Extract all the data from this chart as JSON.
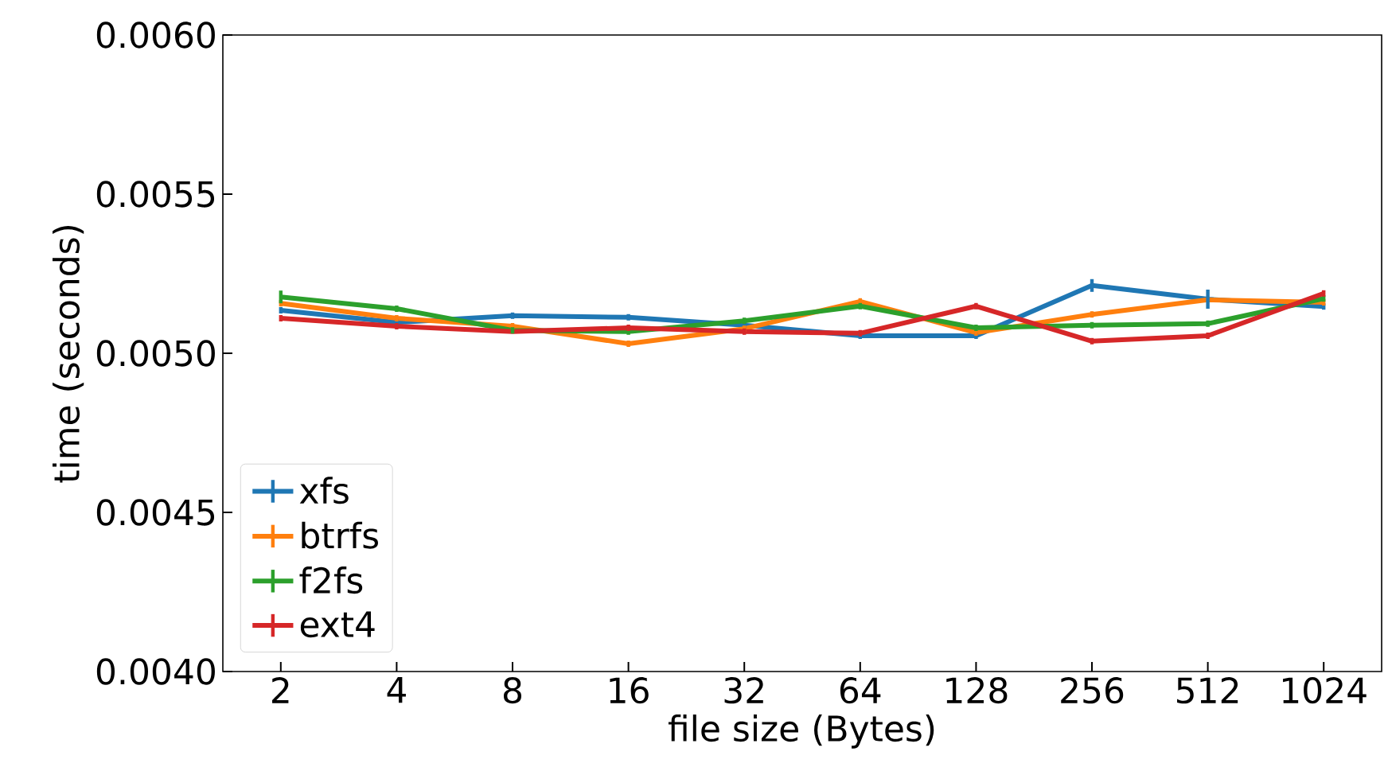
{
  "chart_data": {
    "type": "line",
    "xlabel": "file size (Bytes)",
    "ylabel": "time (seconds)",
    "categories": [
      "2",
      "4",
      "8",
      "16",
      "32",
      "64",
      "128",
      "256",
      "512",
      "1024"
    ],
    "series": [
      {
        "name": "xfs",
        "color": "#1f77b4",
        "values": [
          0.005135,
          0.005097,
          0.005118,
          0.005113,
          0.005088,
          0.005055,
          0.005055,
          0.005213,
          0.00517,
          0.005147
        ],
        "errors": [
          1e-05,
          1e-05,
          1e-05,
          1e-05,
          1e-05,
          1e-05,
          1e-05,
          2e-05,
          3e-05,
          1e-05
        ]
      },
      {
        "name": "btrfs",
        "color": "#ff7f0e",
        "values": [
          0.005157,
          0.00511,
          0.005085,
          0.00503,
          0.005077,
          0.005163,
          0.005065,
          0.005122,
          0.005168,
          0.00516
        ],
        "errors": [
          1e-05,
          1e-05,
          1e-05,
          1e-05,
          1e-05,
          1e-05,
          1e-05,
          1e-05,
          null,
          1e-05
        ]
      },
      {
        "name": "f2fs",
        "color": "#2ca02c",
        "values": [
          0.005177,
          0.00514,
          0.005072,
          0.005068,
          0.005102,
          0.005148,
          0.00508,
          0.005088,
          0.005093,
          0.005172
        ],
        "errors": [
          2e-05,
          1e-05,
          1e-05,
          1e-05,
          1e-05,
          1e-05,
          1e-05,
          1e-05,
          1e-05,
          1e-05
        ]
      },
      {
        "name": "ext4",
        "color": "#d62728",
        "values": [
          0.00511,
          0.005085,
          0.005068,
          0.00508,
          0.005068,
          0.005063,
          0.005148,
          0.005038,
          0.005055,
          0.005188
        ],
        "errors": [
          1e-05,
          1e-05,
          null,
          1e-05,
          1e-05,
          1e-05,
          1e-05,
          1e-05,
          1e-05,
          1e-05
        ]
      }
    ],
    "ylim": [
      0.004,
      0.006
    ],
    "yticks": [
      {
        "value": 0.004,
        "label": "0.0040"
      },
      {
        "value": 0.0045,
        "label": "0.0045"
      },
      {
        "value": 0.005,
        "label": "0.0050"
      },
      {
        "value": 0.0055,
        "label": "0.0055"
      },
      {
        "value": 0.006,
        "label": "0.0060"
      }
    ],
    "legend": "bottom left",
    "grid": false,
    "marker": "none",
    "line_style": "solid"
  }
}
